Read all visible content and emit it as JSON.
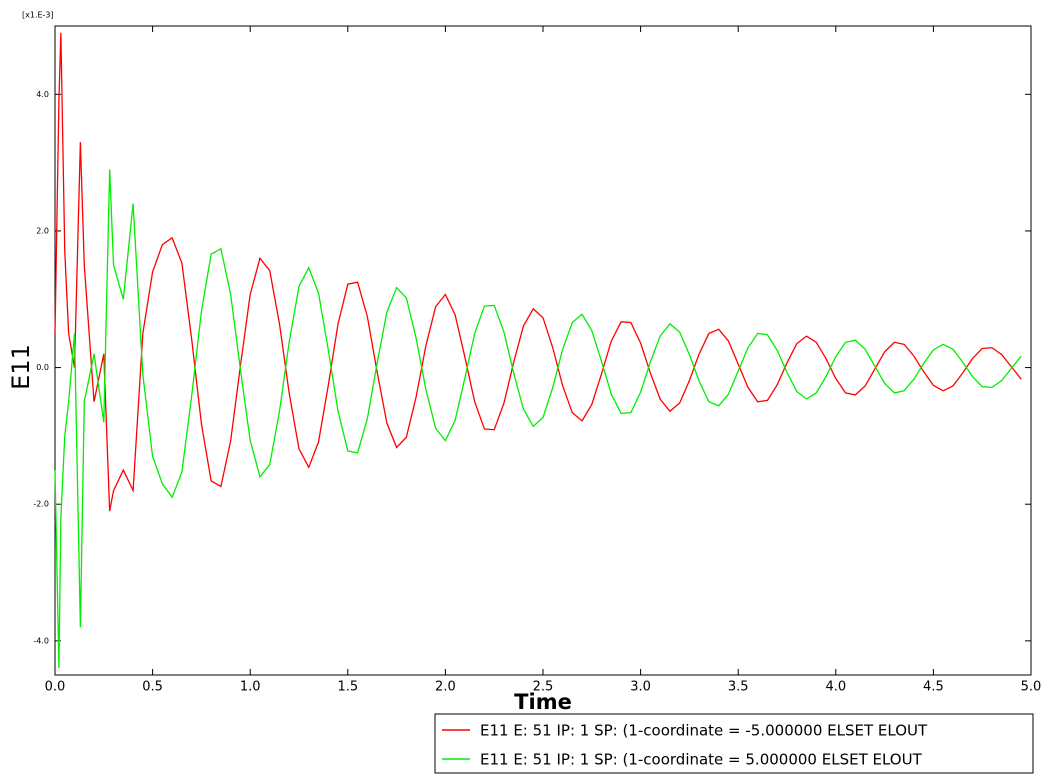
{
  "chart_data": {
    "type": "line",
    "x_label": "Time",
    "y_label": "E11",
    "y_multiplier": "[x1.E-3]",
    "xlim": [
      0,
      5.0
    ],
    "ylim": [
      -4.5,
      5.0
    ],
    "xticks": [
      {
        "value": 0,
        "label": "0.0"
      },
      0.5,
      {
        "value": 1,
        "label": "1.0"
      },
      1.5,
      {
        "value": 2,
        "label": "2.0"
      },
      2.5,
      {
        "value": 3,
        "label": "3.0"
      },
      3.5,
      {
        "value": 4,
        "label": "4.0"
      },
      4.5,
      {
        "value": 5,
        "label": "5.0"
      }
    ],
    "yticks": [
      {
        "value": -4,
        "label": "-4.0"
      },
      {
        "value": -2,
        "label": "-2.0"
      },
      {
        "value": 0,
        "label": "0.0"
      },
      {
        "value": 2,
        "label": "2.0"
      },
      {
        "value": 4,
        "label": "4.0"
      }
    ],
    "x": [
      0,
      0.02,
      0.03,
      0.05,
      0.07,
      0.1,
      0.13,
      0.15,
      0.2,
      0.25,
      0.28,
      0.3,
      0.35,
      0.4,
      0.45,
      0.5,
      0.55,
      0.6,
      0.65,
      0.7,
      0.75,
      0.8,
      0.85,
      0.9,
      0.95,
      1.0,
      1.05,
      1.1,
      1.15,
      1.2,
      1.25,
      1.3,
      1.35,
      1.4,
      1.45,
      1.5,
      1.55,
      1.6,
      1.65,
      1.7,
      1.75,
      1.8,
      1.85,
      1.9,
      1.95,
      2.0,
      2.05,
      2.1,
      2.15,
      2.2,
      2.25,
      2.3,
      2.35,
      2.4,
      2.45,
      2.5,
      2.55,
      2.6,
      2.65,
      2.7,
      2.75,
      2.8,
      2.85,
      2.9,
      2.95,
      3.0,
      3.05,
      3.1,
      3.15,
      3.2,
      3.25,
      3.3,
      3.35,
      3.4,
      3.45,
      3.5,
      3.55,
      3.6,
      3.65,
      3.7,
      3.75,
      3.8,
      3.85,
      3.9,
      3.95,
      4.0,
      4.05,
      4.1,
      4.15,
      4.2,
      4.25,
      4.3,
      4.35,
      4.4,
      4.45,
      4.5,
      4.55,
      4.6,
      4.65,
      4.7,
      4.75,
      4.8,
      4.85,
      4.9,
      4.95
    ],
    "series": [
      {
        "name": "E11 E: 51 IP: 1 SP: (1-coordinate = -5.000000 ELSET ELOUT",
        "color": "#ff0000",
        "values": [
          0.5,
          3.9,
          4.9,
          1.7,
          0.5,
          0.0,
          3.3,
          1.5,
          -0.5,
          0.2,
          -2.1,
          -1.8,
          -1.5,
          -1.8,
          0.5,
          1.4,
          1.8,
          1.9,
          1.53,
          0.42,
          -0.82,
          -1.66,
          -1.74,
          -1.07,
          0.03,
          1.07,
          1.6,
          1.42,
          0.64,
          -0.38,
          -1.19,
          -1.46,
          -1.09,
          -0.26,
          0.64,
          1.22,
          1.25,
          0.75,
          -0.06,
          -0.81,
          -1.17,
          -1.02,
          -0.43,
          0.32,
          0.89,
          1.07,
          0.77,
          0.15,
          -0.5,
          -0.9,
          -0.91,
          -0.52,
          0.08,
          0.61,
          0.86,
          0.73,
          0.29,
          -0.26,
          -0.66,
          -0.78,
          -0.54,
          -0.09,
          0.39,
          0.67,
          0.66,
          0.36,
          -0.08,
          -0.46,
          -0.64,
          -0.52,
          -0.19,
          0.2,
          0.5,
          0.56,
          0.39,
          0.05,
          -0.29,
          -0.5,
          -0.48,
          -0.25,
          0.07,
          0.35,
          0.46,
          0.37,
          0.13,
          -0.16,
          -0.37,
          -0.4,
          -0.27,
          -0.02,
          0.23,
          0.37,
          0.34,
          0.17,
          -0.06,
          -0.26,
          -0.34,
          -0.27,
          -0.08,
          0.13,
          0.28,
          0.29,
          0.19,
          0.01,
          -0.17
        ]
      },
      {
        "name": "E11 E: 51 IP: 1 SP: (1-coordinate = 5.000000 ELSET ELOUT",
        "color": "#00ee00",
        "values": [
          -1.5,
          -4.4,
          -2.2,
          -1.0,
          -0.5,
          0.5,
          -3.8,
          -0.5,
          0.2,
          -0.8,
          2.9,
          1.5,
          1.0,
          2.4,
          -0.1,
          -1.3,
          -1.7,
          -1.9,
          -1.53,
          -0.42,
          0.82,
          1.66,
          1.74,
          1.07,
          -0.03,
          -1.07,
          -1.6,
          -1.42,
          -0.64,
          0.38,
          1.19,
          1.46,
          1.09,
          0.26,
          -0.64,
          -1.22,
          -1.25,
          -0.75,
          0.06,
          0.81,
          1.17,
          1.02,
          0.43,
          -0.32,
          -0.89,
          -1.07,
          -0.77,
          -0.15,
          0.5,
          0.9,
          0.91,
          0.52,
          -0.08,
          -0.61,
          -0.86,
          -0.73,
          -0.29,
          0.26,
          0.66,
          0.78,
          0.54,
          0.09,
          -0.39,
          -0.67,
          -0.66,
          -0.36,
          0.08,
          0.46,
          0.64,
          0.52,
          0.19,
          -0.2,
          -0.5,
          -0.56,
          -0.39,
          -0.05,
          0.29,
          0.5,
          0.48,
          0.25,
          -0.07,
          -0.35,
          -0.46,
          -0.37,
          -0.13,
          0.16,
          0.37,
          0.4,
          0.27,
          0.02,
          -0.23,
          -0.37,
          -0.34,
          -0.17,
          0.06,
          0.26,
          0.34,
          0.27,
          0.08,
          -0.13,
          -0.28,
          -0.29,
          -0.19,
          -0.01,
          0.17
        ]
      }
    ]
  }
}
